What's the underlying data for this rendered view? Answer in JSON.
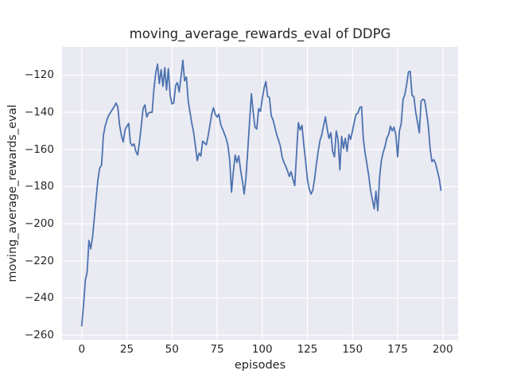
{
  "chart_data": {
    "type": "line",
    "title": "moving_average_rewards_eval of DDPG",
    "xlabel": "episodes",
    "ylabel": "moving_average_rewards_eval",
    "legend": null,
    "grid": true,
    "x_start": 0,
    "x_step": 1,
    "xlim": [
      -10.9,
      208.5
    ],
    "ylim": [
      -262.5,
      -104.8
    ],
    "xticks": {
      "values": [
        0,
        25,
        50,
        75,
        100,
        125,
        150,
        175,
        200
      ],
      "labels": [
        "0",
        "25",
        "50",
        "75",
        "100",
        "125",
        "150",
        "175",
        "200"
      ]
    },
    "yticks": {
      "values": [
        -260,
        -240,
        -220,
        -200,
        -180,
        -160,
        -140,
        -120
      ],
      "labels": [
        "−260",
        "−240",
        "−220",
        "−200",
        "−180",
        "−160",
        "−140",
        "−120"
      ]
    },
    "line_color": "#4C72B0",
    "plot_bg": "#EAEAF2",
    "grid_color": "#FFFFFF",
    "text_color": "#262626",
    "values": [
      -255,
      -244,
      -230.5,
      -226,
      -209,
      -213.5,
      -207,
      -197,
      -186,
      -176,
      -170,
      -168.5,
      -152.5,
      -147.5,
      -144,
      -141.5,
      -140,
      -138.5,
      -137,
      -135,
      -137,
      -147,
      -152.5,
      -156,
      -149.5,
      -147.5,
      -146,
      -156.5,
      -158,
      -157,
      -161,
      -163,
      -156,
      -147.5,
      -138,
      -136,
      -142.5,
      -140.5,
      -140,
      -140,
      -127.5,
      -119,
      -114,
      -124.5,
      -117,
      -126,
      -116,
      -128,
      -116.5,
      -131,
      -135.5,
      -135,
      -125.5,
      -124,
      -129,
      -121,
      -112,
      -123,
      -121,
      -134,
      -140,
      -146,
      -151,
      -158,
      -166,
      -162,
      -163.5,
      -155.5,
      -156.5,
      -157.5,
      -153,
      -147,
      -141,
      -137.5,
      -141,
      -142.5,
      -141,
      -146.5,
      -149,
      -151.5,
      -154,
      -158,
      -166,
      -183,
      -172,
      -163,
      -167,
      -163.5,
      -171,
      -177,
      -184,
      -175,
      -160,
      -145,
      -130,
      -140,
      -148,
      -149,
      -138,
      -139.5,
      -133,
      -127,
      -123.5,
      -131.5,
      -132,
      -142,
      -144,
      -148,
      -152,
      -155,
      -158,
      -164,
      -167,
      -169,
      -171.5,
      -174.5,
      -172,
      -176,
      -179.5,
      -162,
      -145.5,
      -149.5,
      -147,
      -157,
      -166,
      -176,
      -181,
      -184,
      -182,
      -176,
      -168,
      -161,
      -155,
      -152,
      -147,
      -142.5,
      -149,
      -154,
      -151,
      -161,
      -164,
      -150,
      -155,
      -171,
      -153,
      -159.5,
      -154,
      -161,
      -152,
      -154.5,
      -150,
      -145,
      -141,
      -140.5,
      -137.5,
      -137,
      -154,
      -162,
      -168,
      -174,
      -182,
      -187,
      -192,
      -182.5,
      -193,
      -175,
      -166,
      -161.5,
      -158.5,
      -154,
      -152,
      -147.5,
      -150,
      -148,
      -152,
      -164,
      -150,
      -146,
      -133,
      -130.5,
      -125,
      -118.2,
      -118,
      -131,
      -131.5,
      -140,
      -145,
      -151,
      -134,
      -133,
      -133.5,
      -140,
      -147,
      -159.5,
      -166.5,
      -165.5,
      -167.5,
      -171.5,
      -175.5,
      -182
    ]
  }
}
